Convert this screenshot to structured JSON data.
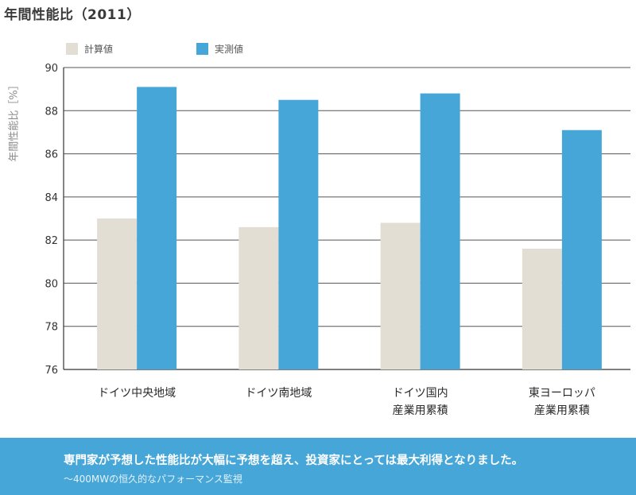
{
  "title": "年間性能比（2011）",
  "colors": {
    "calculated": "#e2ded4",
    "measured": "#46a6d8",
    "grid": "#555555",
    "banner": "#46a6d8"
  },
  "chart_data": {
    "type": "bar",
    "title": "年間性能比（2011）",
    "ylabel": "年間性能比［%］",
    "xlabel": "",
    "ylim": [
      76,
      90
    ],
    "yticks": [
      76,
      78,
      80,
      82,
      84,
      86,
      88,
      90
    ],
    "grid": true,
    "legend_position": "top-left",
    "categories": [
      [
        "ドイツ中央地域"
      ],
      [
        "ドイツ南地域"
      ],
      [
        "ドイツ国内",
        "産業用累積"
      ],
      [
        "東ヨーロッパ",
        "産業用累積"
      ]
    ],
    "series": [
      {
        "name": "計算値",
        "color": "#e2ded4",
        "values": [
          83.0,
          82.6,
          82.8,
          81.6
        ]
      },
      {
        "name": "実測値",
        "color": "#46a6d8",
        "values": [
          89.1,
          88.5,
          88.8,
          87.1
        ]
      }
    ]
  },
  "banner": {
    "main": "専門家が予想した性能比が大幅に予想を超え、投資家にとっては最大利得となりました。",
    "sub": "～400MWの恒久的なパフォーマンス監視"
  }
}
